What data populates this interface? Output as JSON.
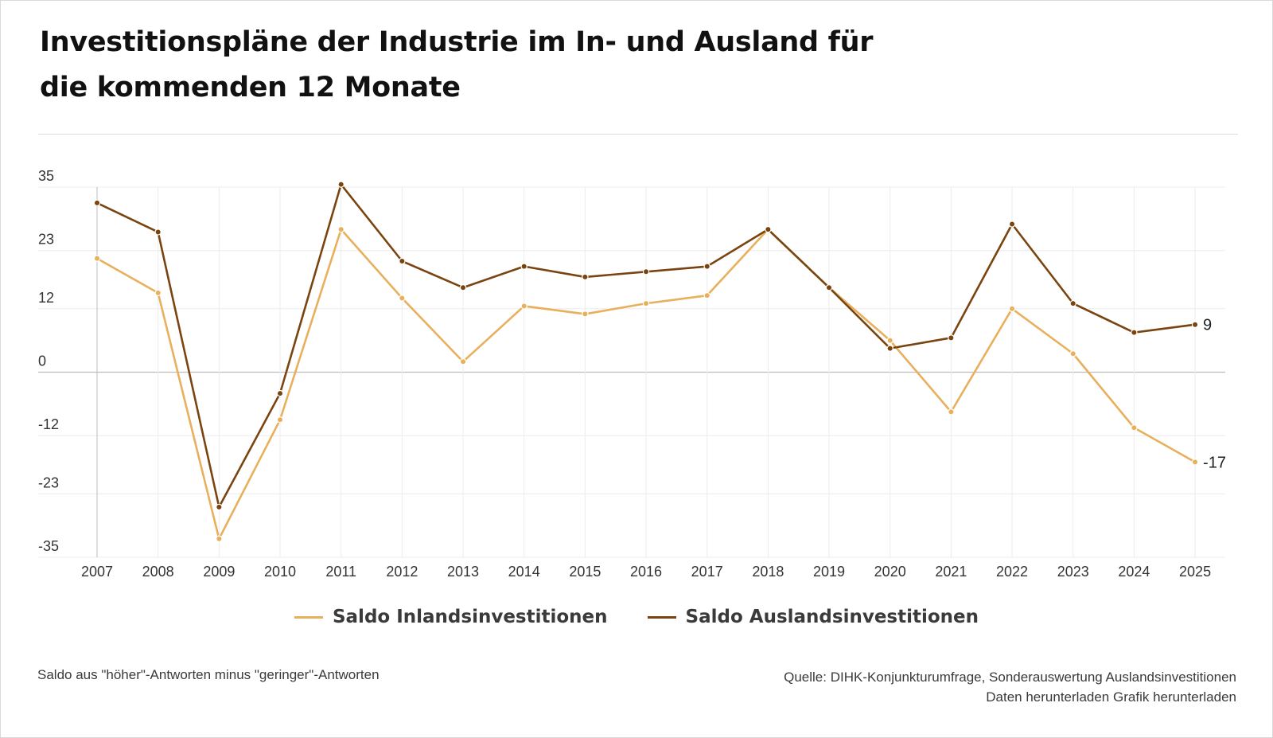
{
  "title_line1": "Investitionspläne der Industrie im In- und Ausland für",
  "title_line2": "die kommenden 12 Monate",
  "note": "Saldo aus \"höher\"-Antworten minus \"geringer\"-Antworten",
  "source": "Quelle: DIHK-Konjunkturumfrage, Sonderauswertung Auslandsinvestitionen",
  "download_data": "Daten herunterladen",
  "download_graphic": "Grafik herunterladen",
  "colors": {
    "inland": "#e8b05c",
    "ausland": "#7a4410",
    "grid": "#ececec",
    "zero_line": "#bdbdbd"
  },
  "chart_data": {
    "type": "line",
    "categories": [
      "2007",
      "2008",
      "2009",
      "2010",
      "2011",
      "2012",
      "2013",
      "2014",
      "2015",
      "2016",
      "2017",
      "2018",
      "2019",
      "2020",
      "2021",
      "2022",
      "2023",
      "2024",
      "2025"
    ],
    "y_ticks": [
      35,
      23,
      12,
      0,
      -12,
      -23,
      -35
    ],
    "ylim": [
      -35,
      35
    ],
    "grid": true,
    "legend_position": "bottom",
    "series": [
      {
        "name": "Saldo Inlandsinvestitionen",
        "color_key": "inland",
        "values": [
          21.5,
          15,
          -31.5,
          -9,
          27,
          14,
          2,
          12.5,
          11,
          13,
          14.5,
          27,
          16,
          6,
          -7.5,
          12,
          3.5,
          -10.5,
          -17
        ],
        "end_label": "-17"
      },
      {
        "name": "Saldo Auslandsinvestitionen",
        "color_key": "ausland",
        "values": [
          32,
          26.5,
          -25.5,
          -4,
          35.5,
          21,
          16,
          20,
          18,
          19,
          20,
          27,
          16,
          4.5,
          6.5,
          28,
          13,
          7.5,
          9
        ],
        "end_label": "9"
      }
    ]
  }
}
